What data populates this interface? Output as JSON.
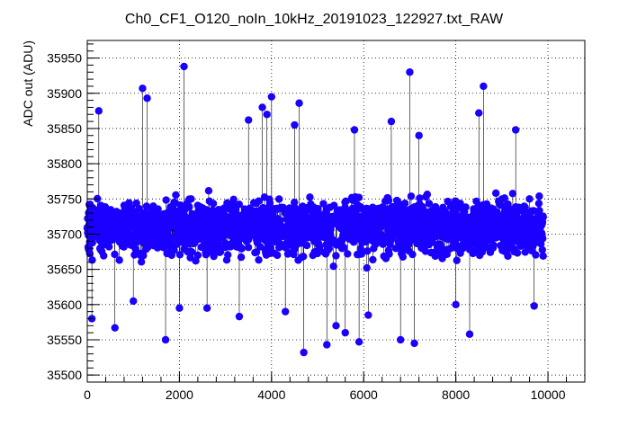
{
  "chart_data": {
    "type": "scatter",
    "title": "Ch0_CF1_O120_noIn_10kHz_20191023_122927.txt_RAW",
    "xlabel": "",
    "ylabel": "ADC out (ADU)",
    "xlim": [
      0,
      10800
    ],
    "ylim": [
      35490,
      35975
    ],
    "xticks": [
      0,
      2000,
      4000,
      6000,
      8000,
      10000
    ],
    "yticks": [
      35500,
      35550,
      35600,
      35650,
      35700,
      35750,
      35800,
      35850,
      35900,
      35950
    ],
    "grid": true,
    "marker_color": "#1a00ff",
    "line_color": "#000000",
    "baseline": 35710,
    "n_points": 9900,
    "series": [
      {
        "description_hidden": true,
        "mean": 35710,
        "core_low": 35640,
        "core_high": 35780,
        "outliers": [
          [
            250,
            35875
          ],
          [
            1200,
            35907
          ],
          [
            1300,
            35893
          ],
          [
            2100,
            35938
          ],
          [
            3500,
            35862
          ],
          [
            3800,
            35880
          ],
          [
            3900,
            35870
          ],
          [
            4000,
            35895
          ],
          [
            4500,
            35855
          ],
          [
            4600,
            35886
          ],
          [
            5800,
            35848
          ],
          [
            6600,
            35860
          ],
          [
            7000,
            35930
          ],
          [
            7200,
            35840
          ],
          [
            8500,
            35872
          ],
          [
            8600,
            35910
          ],
          [
            9300,
            35848
          ],
          [
            1700,
            35550
          ],
          [
            4700,
            35532
          ],
          [
            5200,
            35543
          ],
          [
            5600,
            35560
          ],
          [
            5900,
            35547
          ],
          [
            6800,
            35550
          ],
          [
            8300,
            35558
          ],
          [
            600,
            35567
          ],
          [
            7100,
            35545
          ],
          [
            3300,
            35583
          ],
          [
            100,
            35580
          ],
          [
            9700,
            35598
          ],
          [
            2600,
            35595
          ],
          [
            4300,
            35590
          ],
          [
            5400,
            35570
          ],
          [
            2000,
            35595
          ],
          [
            6100,
            35585
          ],
          [
            8000,
            35600
          ],
          [
            1000,
            35605
          ]
        ]
      }
    ]
  }
}
